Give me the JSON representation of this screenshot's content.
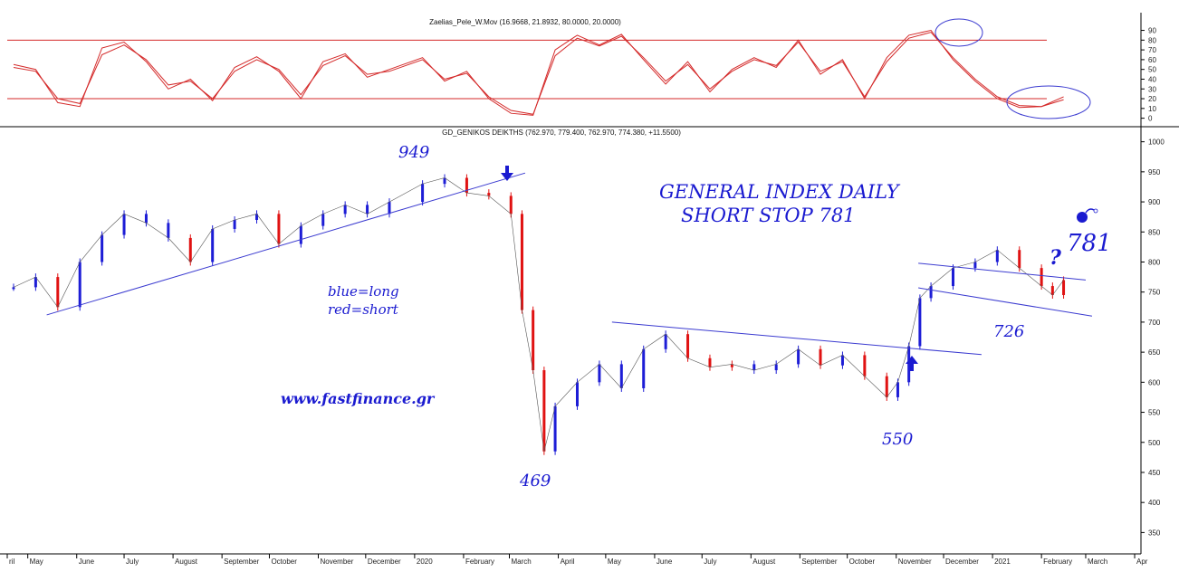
{
  "colors": {
    "long": "#1d1dd6",
    "short": "#e01212",
    "oscillator": "#d42a2a",
    "trendline": "#3b3bd0",
    "annotation": "#1a1ad0",
    "axis": "#000000"
  },
  "chart_data": [
    {
      "type": "line",
      "title": "Zaelias_Pele_W.Mov (16.9668, 21.8932, 80.0000, 20.0000)",
      "y_ticks": [
        90,
        80,
        70,
        60,
        50,
        40,
        30,
        20,
        10,
        0
      ],
      "ylim": [
        -5,
        97
      ],
      "levels": [
        80,
        20
      ],
      "x": [
        "2019-04-22",
        "2019-05-06",
        "2019-05-20",
        "2019-06-03",
        "2019-06-17",
        "2019-07-01",
        "2019-07-15",
        "2019-07-29",
        "2019-08-12",
        "2019-08-26",
        "2019-09-09",
        "2019-09-23",
        "2019-10-07",
        "2019-10-21",
        "2019-11-04",
        "2019-11-18",
        "2019-12-02",
        "2019-12-16",
        "2020-01-06",
        "2020-01-20",
        "2020-02-03",
        "2020-02-17",
        "2020-03-02",
        "2020-03-16",
        "2020-03-30",
        "2020-04-13",
        "2020-04-27",
        "2020-05-11",
        "2020-05-25",
        "2020-06-08",
        "2020-06-22",
        "2020-07-06",
        "2020-07-20",
        "2020-08-03",
        "2020-08-17",
        "2020-08-31",
        "2020-09-14",
        "2020-09-28",
        "2020-10-12",
        "2020-10-26",
        "2020-11-09",
        "2020-11-23",
        "2020-12-07",
        "2020-12-21",
        "2021-01-04",
        "2021-01-18",
        "2021-02-01",
        "2021-02-15"
      ],
      "series": [
        {
          "values": [
            55,
            50,
            16,
            12,
            72,
            78,
            58,
            30,
            40,
            18,
            52,
            63,
            48,
            20,
            58,
            66,
            42,
            50,
            62,
            38,
            48,
            20,
            5,
            3,
            70,
            85,
            75,
            86,
            60,
            35,
            58,
            27,
            50,
            62,
            52,
            80,
            45,
            60,
            20,
            62,
            85,
            90,
            60,
            38,
            20,
            11,
            12,
            22
          ]
        },
        {
          "values": [
            52,
            48,
            20,
            15,
            65,
            75,
            60,
            34,
            38,
            20,
            48,
            60,
            50,
            24,
            54,
            64,
            45,
            48,
            60,
            40,
            46,
            22,
            8,
            4,
            64,
            82,
            74,
            84,
            62,
            38,
            55,
            30,
            48,
            60,
            54,
            78,
            48,
            58,
            22,
            58,
            82,
            88,
            62,
            40,
            22,
            13,
            12,
            19
          ]
        }
      ]
    },
    {
      "type": "candlestick",
      "title": "GD_GENIKOS DEIKTHS (762.970, 779.400, 762.970, 774.380, +11.5500)",
      "y_ticks": [
        1000,
        950,
        900,
        850,
        800,
        750,
        700,
        650,
        600,
        550,
        500,
        450,
        400,
        350
      ],
      "ylim": [
        325,
        1010
      ],
      "x_tick_labels": [
        "ril",
        "May",
        "June",
        "July",
        "August",
        "September",
        "October",
        "November",
        "December",
        "2020",
        "February",
        "March",
        "April",
        "May",
        "June",
        "July",
        "August",
        "September",
        "October",
        "November",
        "December",
        "2021",
        "February",
        "March",
        "Apr"
      ],
      "x": [
        "2019-04-22",
        "2019-05-06",
        "2019-05-20",
        "2019-06-03",
        "2019-06-17",
        "2019-07-01",
        "2019-07-15",
        "2019-07-29",
        "2019-08-12",
        "2019-08-26",
        "2019-09-09",
        "2019-09-23",
        "2019-10-07",
        "2019-10-21",
        "2019-11-04",
        "2019-11-18",
        "2019-12-02",
        "2019-12-16",
        "2020-01-06",
        "2020-01-20",
        "2020-02-03",
        "2020-02-17",
        "2020-03-02",
        "2020-03-09",
        "2020-03-16",
        "2020-03-23",
        "2020-03-30",
        "2020-04-13",
        "2020-04-27",
        "2020-05-11",
        "2020-05-25",
        "2020-06-08",
        "2020-06-22",
        "2020-07-06",
        "2020-07-20",
        "2020-08-03",
        "2020-08-17",
        "2020-08-31",
        "2020-09-14",
        "2020-09-28",
        "2020-10-12",
        "2020-10-26",
        "2020-11-02",
        "2020-11-09",
        "2020-11-16",
        "2020-11-23",
        "2020-12-07",
        "2020-12-21",
        "2021-01-04",
        "2021-01-18",
        "2021-02-01",
        "2021-02-08",
        "2021-02-15"
      ],
      "close": [
        758,
        775,
        725,
        800,
        845,
        880,
        865,
        840,
        800,
        855,
        870,
        880,
        830,
        860,
        880,
        895,
        880,
        900,
        930,
        940,
        915,
        910,
        880,
        720,
        620,
        485,
        560,
        600,
        630,
        590,
        655,
        680,
        640,
        625,
        630,
        620,
        630,
        655,
        628,
        645,
        610,
        575,
        600,
        660,
        740,
        760,
        790,
        800,
        820,
        790,
        760,
        745,
        770
      ],
      "direction": [
        "long",
        "long",
        "short",
        "long",
        "long",
        "long",
        "long",
        "long",
        "short",
        "long",
        "long",
        "long",
        "short",
        "long",
        "long",
        "long",
        "long",
        "long",
        "long",
        "long",
        "short",
        "short",
        "short",
        "short",
        "short",
        "short",
        "long",
        "long",
        "long",
        "long",
        "long",
        "long",
        "short",
        "short",
        "short",
        "long",
        "long",
        "long",
        "short",
        "long",
        "short",
        "short",
        "long",
        "long",
        "long",
        "long",
        "long",
        "long",
        "long",
        "short",
        "short",
        "short",
        "short"
      ],
      "trendlines_label": "blue=long\nred=short"
    }
  ],
  "annotations": {
    "peak": "949",
    "crash_low": "469",
    "oct_low": "550",
    "support": "726",
    "stop_level": "781",
    "question": "?",
    "bomb_icon": "bomb-icon",
    "title_line1": "GENERAL INDEX DAILY",
    "title_line2": "SHORT STOP 781",
    "legend_line1": "blue=long",
    "legend_line2": "red=short",
    "website": "www.fastfinance.gr"
  }
}
